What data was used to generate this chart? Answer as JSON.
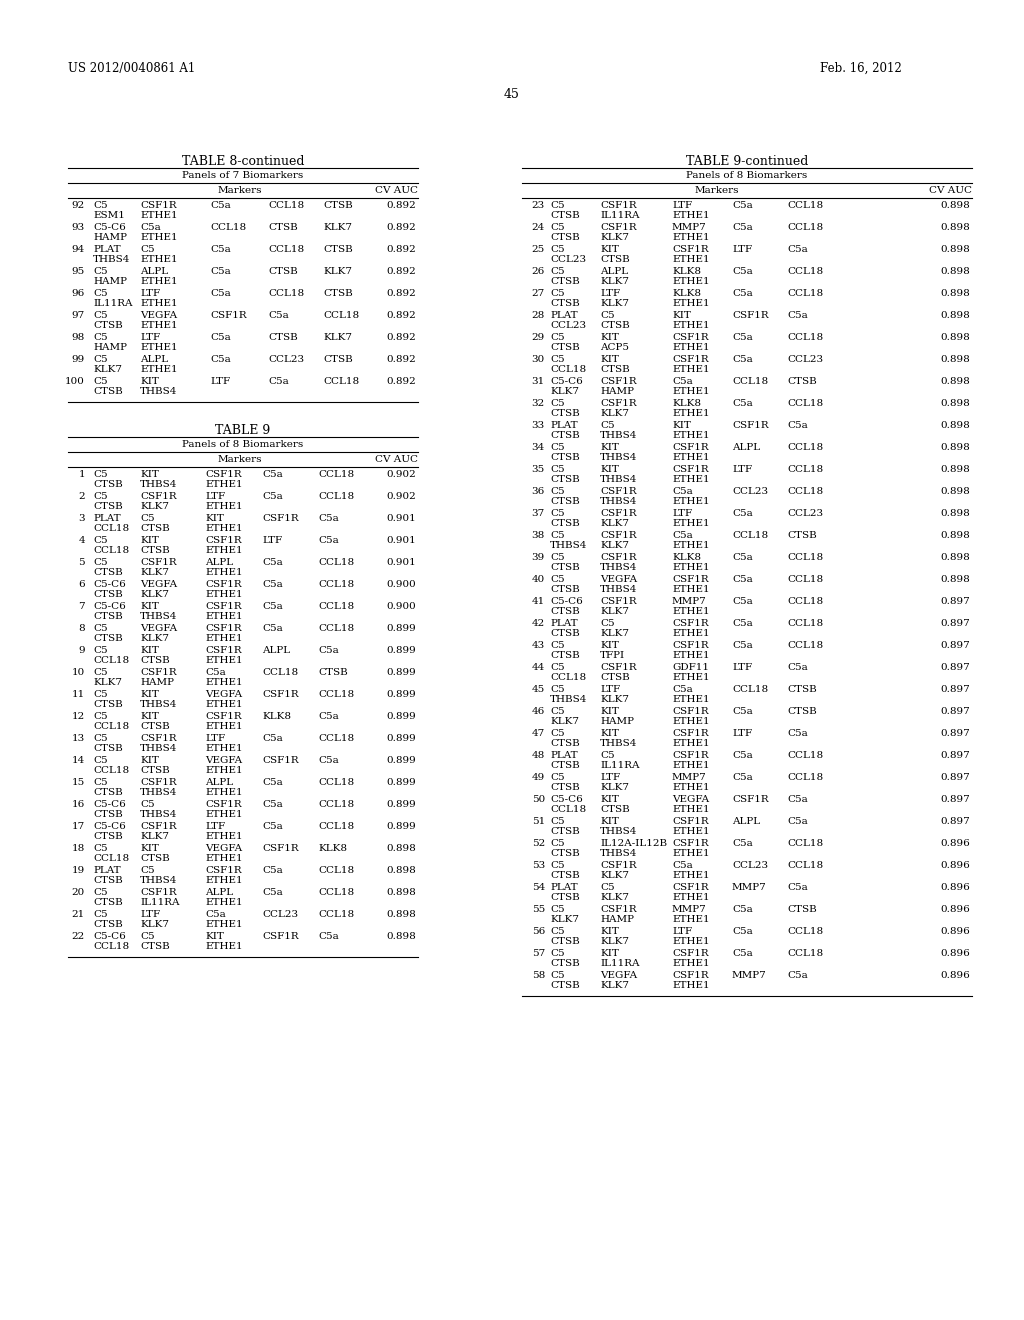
{
  "page_num": "45",
  "patent_left": "US 2012/0040861 A1",
  "patent_right": "Feb. 16, 2012",
  "table8_rows": [
    {
      "num": "92",
      "l1": [
        "C5",
        "CSF1R",
        "C5a",
        "CCL18",
        "CTSB",
        "0.892"
      ],
      "l2": [
        "ESM1",
        "ETHE1"
      ]
    },
    {
      "num": "93",
      "l1": [
        "C5-C6",
        "C5a",
        "CCL18",
        "CTSB",
        "KLK7",
        "0.892"
      ],
      "l2": [
        "HAMP",
        "ETHE1"
      ]
    },
    {
      "num": "94",
      "l1": [
        "PLAT",
        "C5",
        "C5a",
        "CCL18",
        "CTSB",
        "0.892"
      ],
      "l2": [
        "THBS4",
        "ETHE1"
      ]
    },
    {
      "num": "95",
      "l1": [
        "C5",
        "ALPL",
        "C5a",
        "CTSB",
        "KLK7",
        "0.892"
      ],
      "l2": [
        "HAMP",
        "ETHE1"
      ]
    },
    {
      "num": "96",
      "l1": [
        "C5",
        "LTF",
        "C5a",
        "CCL18",
        "CTSB",
        "0.892"
      ],
      "l2": [
        "IL11RA",
        "ETHE1"
      ]
    },
    {
      "num": "97",
      "l1": [
        "C5",
        "VEGFA",
        "CSF1R",
        "C5a",
        "CCL18",
        "0.892"
      ],
      "l2": [
        "CTSB",
        "ETHE1"
      ]
    },
    {
      "num": "98",
      "l1": [
        "C5",
        "LTF",
        "C5a",
        "CTSB",
        "KLK7",
        "0.892"
      ],
      "l2": [
        "HAMP",
        "ETHE1"
      ]
    },
    {
      "num": "99",
      "l1": [
        "C5",
        "ALPL",
        "C5a",
        "CCL23",
        "CTSB",
        "0.892"
      ],
      "l2": [
        "KLK7",
        "ETHE1"
      ]
    },
    {
      "num": "100",
      "l1": [
        "C5",
        "KIT",
        "LTF",
        "C5a",
        "CCL18",
        "0.892"
      ],
      "l2": [
        "CTSB",
        "THBS4"
      ]
    }
  ],
  "table9_rows": [
    {
      "num": "1",
      "l1": [
        "C5",
        "KIT",
        "CSF1R",
        "C5a",
        "CCL18",
        "0.902"
      ],
      "l2": [
        "CTSB",
        "THBS4",
        "ETHE1"
      ]
    },
    {
      "num": "2",
      "l1": [
        "C5",
        "CSF1R",
        "LTF",
        "C5a",
        "CCL18",
        "0.902"
      ],
      "l2": [
        "CTSB",
        "KLK7",
        "ETHE1"
      ]
    },
    {
      "num": "3",
      "l1": [
        "PLAT",
        "C5",
        "KIT",
        "CSF1R",
        "C5a",
        "0.901"
      ],
      "l2": [
        "CCL18",
        "CTSB",
        "ETHE1"
      ]
    },
    {
      "num": "4",
      "l1": [
        "C5",
        "KIT",
        "CSF1R",
        "LTF",
        "C5a",
        "0.901"
      ],
      "l2": [
        "CCL18",
        "CTSB",
        "ETHE1"
      ]
    },
    {
      "num": "5",
      "l1": [
        "C5",
        "CSF1R",
        "ALPL",
        "C5a",
        "CCL18",
        "0.901"
      ],
      "l2": [
        "CTSB",
        "KLK7",
        "ETHE1"
      ]
    },
    {
      "num": "6",
      "l1": [
        "C5-C6",
        "VEGFA",
        "CSF1R",
        "C5a",
        "CCL18",
        "0.900"
      ],
      "l2": [
        "CTSB",
        "KLK7",
        "ETHE1"
      ]
    },
    {
      "num": "7",
      "l1": [
        "C5-C6",
        "KIT",
        "CSF1R",
        "C5a",
        "CCL18",
        "0.900"
      ],
      "l2": [
        "CTSB",
        "THBS4",
        "ETHE1"
      ]
    },
    {
      "num": "8",
      "l1": [
        "C5",
        "VEGFA",
        "CSF1R",
        "C5a",
        "CCL18",
        "0.899"
      ],
      "l2": [
        "CTSB",
        "KLK7",
        "ETHE1"
      ]
    },
    {
      "num": "9",
      "l1": [
        "C5",
        "KIT",
        "CSF1R",
        "ALPL",
        "C5a",
        "0.899"
      ],
      "l2": [
        "CCL18",
        "CTSB",
        "ETHE1"
      ]
    },
    {
      "num": "10",
      "l1": [
        "C5",
        "CSF1R",
        "C5a",
        "CCL18",
        "CTSB",
        "0.899"
      ],
      "l2": [
        "KLK7",
        "HAMP",
        "ETHE1"
      ]
    },
    {
      "num": "11",
      "l1": [
        "C5",
        "KIT",
        "VEGFA",
        "CSF1R",
        "CCL18",
        "0.899"
      ],
      "l2": [
        "CTSB",
        "THBS4",
        "ETHE1"
      ]
    },
    {
      "num": "12",
      "l1": [
        "C5",
        "KIT",
        "CSF1R",
        "KLK8",
        "C5a",
        "0.899"
      ],
      "l2": [
        "CCL18",
        "CTSB",
        "ETHE1"
      ]
    },
    {
      "num": "13",
      "l1": [
        "C5",
        "CSF1R",
        "LTF",
        "C5a",
        "CCL18",
        "0.899"
      ],
      "l2": [
        "CTSB",
        "THBS4",
        "ETHE1"
      ]
    },
    {
      "num": "14",
      "l1": [
        "C5",
        "KIT",
        "VEGFA",
        "CSF1R",
        "C5a",
        "0.899"
      ],
      "l2": [
        "CCL18",
        "CTSB",
        "ETHE1"
      ]
    },
    {
      "num": "15",
      "l1": [
        "C5",
        "CSF1R",
        "ALPL",
        "C5a",
        "CCL18",
        "0.899"
      ],
      "l2": [
        "CTSB",
        "THBS4",
        "ETHE1"
      ]
    },
    {
      "num": "16",
      "l1": [
        "C5-C6",
        "C5",
        "CSF1R",
        "C5a",
        "CCL18",
        "0.899"
      ],
      "l2": [
        "CTSB",
        "THBS4",
        "ETHE1"
      ]
    },
    {
      "num": "17",
      "l1": [
        "C5-C6",
        "CSF1R",
        "LTF",
        "C5a",
        "CCL18",
        "0.899"
      ],
      "l2": [
        "CTSB",
        "KLK7",
        "ETHE1"
      ]
    },
    {
      "num": "18",
      "l1": [
        "C5",
        "KIT",
        "VEGFA",
        "CSF1R",
        "KLK8",
        "0.898"
      ],
      "l2": [
        "CCL18",
        "CTSB",
        "ETHE1"
      ]
    },
    {
      "num": "19",
      "l1": [
        "PLAT",
        "C5",
        "CSF1R",
        "C5a",
        "CCL18",
        "0.898"
      ],
      "l2": [
        "CTSB",
        "THBS4",
        "ETHE1"
      ]
    },
    {
      "num": "20",
      "l1": [
        "C5",
        "CSF1R",
        "ALPL",
        "C5a",
        "CCL18",
        "0.898"
      ],
      "l2": [
        "CTSB",
        "IL11RA",
        "ETHE1"
      ]
    },
    {
      "num": "21",
      "l1": [
        "C5",
        "LTF",
        "C5a",
        "CCL23",
        "CCL18",
        "0.898"
      ],
      "l2": [
        "CTSB",
        "KLK7",
        "ETHE1"
      ]
    },
    {
      "num": "22",
      "l1": [
        "C5-C6",
        "C5",
        "KIT",
        "CSF1R",
        "C5a",
        "0.898"
      ],
      "l2": [
        "CCL18",
        "CTSB",
        "ETHE1"
      ]
    }
  ],
  "table9c_rows": [
    {
      "num": "23",
      "l1": [
        "C5",
        "CSF1R",
        "LTF",
        "C5a",
        "CCL18",
        "0.898"
      ],
      "l2": [
        "CTSB",
        "IL11RA",
        "ETHE1"
      ]
    },
    {
      "num": "24",
      "l1": [
        "C5",
        "CSF1R",
        "MMP7",
        "C5a",
        "CCL18",
        "0.898"
      ],
      "l2": [
        "CTSB",
        "KLK7",
        "ETHE1"
      ]
    },
    {
      "num": "25",
      "l1": [
        "C5",
        "KIT",
        "CSF1R",
        "LTF",
        "C5a",
        "0.898"
      ],
      "l2": [
        "CCL23",
        "CTSB",
        "ETHE1"
      ]
    },
    {
      "num": "26",
      "l1": [
        "C5",
        "ALPL",
        "KLK8",
        "C5a",
        "CCL18",
        "0.898"
      ],
      "l2": [
        "CTSB",
        "KLK7",
        "ETHE1"
      ]
    },
    {
      "num": "27",
      "l1": [
        "C5",
        "LTF",
        "KLK8",
        "C5a",
        "CCL18",
        "0.898"
      ],
      "l2": [
        "CTSB",
        "KLK7",
        "ETHE1"
      ]
    },
    {
      "num": "28",
      "l1": [
        "PLAT",
        "C5",
        "KIT",
        "CSF1R",
        "C5a",
        "0.898"
      ],
      "l2": [
        "CCL23",
        "CTSB",
        "ETHE1"
      ]
    },
    {
      "num": "29",
      "l1": [
        "C5",
        "KIT",
        "CSF1R",
        "C5a",
        "CCL18",
        "0.898"
      ],
      "l2": [
        "CTSB",
        "ACP5",
        "ETHE1"
      ]
    },
    {
      "num": "30",
      "l1": [
        "C5",
        "KIT",
        "CSF1R",
        "C5a",
        "CCL23",
        "0.898"
      ],
      "l2": [
        "CCL18",
        "CTSB",
        "ETHE1"
      ]
    },
    {
      "num": "31",
      "l1": [
        "C5-C6",
        "CSF1R",
        "C5a",
        "CCL18",
        "CTSB",
        "0.898"
      ],
      "l2": [
        "KLK7",
        "HAMP",
        "ETHE1"
      ]
    },
    {
      "num": "32",
      "l1": [
        "C5",
        "CSF1R",
        "KLK8",
        "C5a",
        "CCL18",
        "0.898"
      ],
      "l2": [
        "CTSB",
        "KLK7",
        "ETHE1"
      ]
    },
    {
      "num": "33",
      "l1": [
        "PLAT",
        "C5",
        "KIT",
        "CSF1R",
        "C5a",
        "0.898"
      ],
      "l2": [
        "CTSB",
        "THBS4",
        "ETHE1"
      ]
    },
    {
      "num": "34",
      "l1": [
        "C5",
        "KIT",
        "CSF1R",
        "ALPL",
        "CCL18",
        "0.898"
      ],
      "l2": [
        "CTSB",
        "THBS4",
        "ETHE1"
      ]
    },
    {
      "num": "35",
      "l1": [
        "C5",
        "KIT",
        "CSF1R",
        "LTF",
        "CCL18",
        "0.898"
      ],
      "l2": [
        "CTSB",
        "THBS4",
        "ETHE1"
      ]
    },
    {
      "num": "36",
      "l1": [
        "C5",
        "CSF1R",
        "C5a",
        "CCL23",
        "CCL18",
        "0.898"
      ],
      "l2": [
        "CTSB",
        "THBS4",
        "ETHE1"
      ]
    },
    {
      "num": "37",
      "l1": [
        "C5",
        "CSF1R",
        "LTF",
        "C5a",
        "CCL23",
        "0.898"
      ],
      "l2": [
        "CTSB",
        "KLK7",
        "ETHE1"
      ]
    },
    {
      "num": "38",
      "l1": [
        "C5",
        "CSF1R",
        "C5a",
        "CCL18",
        "CTSB",
        "0.898"
      ],
      "l2": [
        "THBS4",
        "KLK7",
        "ETHE1"
      ]
    },
    {
      "num": "39",
      "l1": [
        "C5",
        "CSF1R",
        "KLK8",
        "C5a",
        "CCL18",
        "0.898"
      ],
      "l2": [
        "CTSB",
        "THBS4",
        "ETHE1"
      ]
    },
    {
      "num": "40",
      "l1": [
        "C5",
        "VEGFA",
        "CSF1R",
        "C5a",
        "CCL18",
        "0.898"
      ],
      "l2": [
        "CTSB",
        "THBS4",
        "ETHE1"
      ]
    },
    {
      "num": "41",
      "l1": [
        "C5-C6",
        "CSF1R",
        "MMP7",
        "C5a",
        "CCL18",
        "0.897"
      ],
      "l2": [
        "CTSB",
        "KLK7",
        "ETHE1"
      ]
    },
    {
      "num": "42",
      "l1": [
        "PLAT",
        "C5",
        "CSF1R",
        "C5a",
        "CCL18",
        "0.897"
      ],
      "l2": [
        "CTSB",
        "KLK7",
        "ETHE1"
      ]
    },
    {
      "num": "43",
      "l1": [
        "C5",
        "KIT",
        "CSF1R",
        "C5a",
        "CCL18",
        "0.897"
      ],
      "l2": [
        "CTSB",
        "TFPI",
        "ETHE1"
      ]
    },
    {
      "num": "44",
      "l1": [
        "C5",
        "CSF1R",
        "GDF11",
        "LTF",
        "C5a",
        "0.897"
      ],
      "l2": [
        "CCL18",
        "CTSB",
        "ETHE1"
      ]
    },
    {
      "num": "45",
      "l1": [
        "C5",
        "LTF",
        "C5a",
        "CCL18",
        "CTSB",
        "0.897"
      ],
      "l2": [
        "THBS4",
        "KLK7",
        "ETHE1"
      ]
    },
    {
      "num": "46",
      "l1": [
        "C5",
        "KIT",
        "CSF1R",
        "C5a",
        "CTSB",
        "0.897"
      ],
      "l2": [
        "KLK7",
        "HAMP",
        "ETHE1"
      ]
    },
    {
      "num": "47",
      "l1": [
        "C5",
        "KIT",
        "CSF1R",
        "LTF",
        "C5a",
        "0.897"
      ],
      "l2": [
        "CTSB",
        "THBS4",
        "ETHE1"
      ]
    },
    {
      "num": "48",
      "l1": [
        "PLAT",
        "C5",
        "CSF1R",
        "C5a",
        "CCL18",
        "0.897"
      ],
      "l2": [
        "CTSB",
        "IL11RA",
        "ETHE1"
      ]
    },
    {
      "num": "49",
      "l1": [
        "C5",
        "LTF",
        "MMP7",
        "C5a",
        "CCL18",
        "0.897"
      ],
      "l2": [
        "CTSB",
        "KLK7",
        "ETHE1"
      ]
    },
    {
      "num": "50",
      "l1": [
        "C5-C6",
        "KIT",
        "VEGFA",
        "CSF1R",
        "C5a",
        "0.897"
      ],
      "l2": [
        "CCL18",
        "CTSB",
        "ETHE1"
      ]
    },
    {
      "num": "51",
      "l1": [
        "C5",
        "KIT",
        "CSF1R",
        "ALPL",
        "C5a",
        "0.897"
      ],
      "l2": [
        "CTSB",
        "THBS4",
        "ETHE1"
      ]
    },
    {
      "num": "52",
      "l1": [
        "C5",
        "IL12A-IL12B",
        "CSF1R",
        "C5a",
        "CCL18",
        "0.896"
      ],
      "l2": [
        "CTSB",
        "THBS4",
        "ETHE1"
      ]
    },
    {
      "num": "53",
      "l1": [
        "C5",
        "CSF1R",
        "C5a",
        "CCL23",
        "CCL18",
        "0.896"
      ],
      "l2": [
        "CTSB",
        "KLK7",
        "ETHE1"
      ]
    },
    {
      "num": "54",
      "l1": [
        "PLAT",
        "C5",
        "CSF1R",
        "MMP7",
        "C5a",
        "0.896"
      ],
      "l2": [
        "CTSB",
        "KLK7",
        "ETHE1"
      ]
    },
    {
      "num": "55",
      "l1": [
        "C5",
        "CSF1R",
        "MMP7",
        "C5a",
        "CTSB",
        "0.896"
      ],
      "l2": [
        "KLK7",
        "HAMP",
        "ETHE1"
      ]
    },
    {
      "num": "56",
      "l1": [
        "C5",
        "KIT",
        "LTF",
        "C5a",
        "CCL18",
        "0.896"
      ],
      "l2": [
        "CTSB",
        "KLK7",
        "ETHE1"
      ]
    },
    {
      "num": "57",
      "l1": [
        "C5",
        "KIT",
        "CSF1R",
        "C5a",
        "CCL18",
        "0.896"
      ],
      "l2": [
        "CTSB",
        "IL11RA",
        "ETHE1"
      ]
    },
    {
      "num": "58",
      "l1": [
        "C5",
        "VEGFA",
        "CSF1R",
        "MMP7",
        "C5a",
        "0.896"
      ],
      "l2": [
        "CTSB",
        "KLK7",
        "ETHE1"
      ]
    }
  ]
}
